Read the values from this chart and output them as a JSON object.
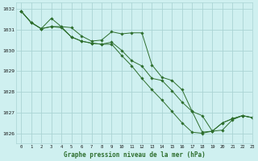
{
  "title": "",
  "xlabel": "Graphe pression niveau de la mer (hPa)",
  "ylabel": "",
  "bg_color": "#cff0f0",
  "grid_color": "#aad4d4",
  "line_color": "#2d6e2d",
  "xlim": [
    -0.5,
    23
  ],
  "ylim": [
    1025.5,
    1032.3
  ],
  "yticks": [
    1026,
    1027,
    1028,
    1029,
    1030,
    1031,
    1032
  ],
  "xticks": [
    0,
    1,
    2,
    3,
    4,
    5,
    6,
    7,
    8,
    9,
    10,
    11,
    12,
    13,
    14,
    15,
    16,
    17,
    18,
    19,
    20,
    21,
    22,
    23
  ],
  "series": [
    [
      1031.9,
      1031.35,
      1031.05,
      1031.55,
      1031.15,
      1031.1,
      1030.7,
      1030.45,
      1030.5,
      1030.9,
      1030.8,
      1030.85,
      1030.85,
      1029.3,
      1028.7,
      1028.55,
      1028.1,
      1027.05,
      1026.85,
      1026.1,
      1026.5,
      1026.7,
      1026.85,
      1026.75
    ],
    [
      1031.9,
      1031.35,
      1031.05,
      1031.15,
      1031.1,
      1030.65,
      1030.45,
      1030.35,
      1030.3,
      1030.4,
      1030.0,
      1029.5,
      1029.25,
      1028.65,
      1028.55,
      1028.05,
      1027.5,
      1027.05,
      1026.05,
      1026.1,
      1026.5,
      1026.7,
      1026.85,
      1026.75
    ],
    [
      1031.9,
      1031.35,
      1031.05,
      1031.15,
      1031.15,
      1030.65,
      1030.45,
      1030.35,
      1030.3,
      1030.3,
      1029.75,
      1029.25,
      1028.65,
      1028.1,
      1027.6,
      1027.05,
      1026.5,
      1026.05,
      1026.0,
      1026.1,
      1026.15,
      1026.65,
      1026.85,
      1026.75
    ]
  ]
}
